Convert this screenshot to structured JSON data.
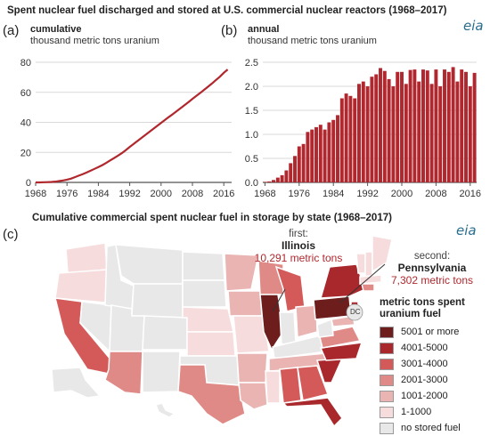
{
  "header": {
    "title": "Spent nuclear fuel discharged and stored at U.S. commercial nuclear reactors (1968–2017)",
    "logo_text": "eia"
  },
  "panels": {
    "a_letter": "(a)",
    "b_letter": "(b)",
    "c_letter": "(c)",
    "a_sub": "cumulative",
    "a_unit": "thousand metric tons uranium",
    "b_sub": "annual",
    "b_unit": "thousand metric tons uranium"
  },
  "map": {
    "title": "Cumulative commercial spent nuclear fuel in storage by state (1968–2017)",
    "logo_text": "eia",
    "first": {
      "label": "first:",
      "state": "Illinois",
      "value": "10,291 metric tons"
    },
    "second": {
      "label": "second:",
      "state": "Pennsylvania",
      "value": "7,302 metric tons"
    },
    "dc_label": "DC",
    "legend": {
      "title_line1": "metric tons spent",
      "title_line2": "uranium fuel",
      "items": [
        {
          "label": "5001 or more",
          "color": "#6e1d1d"
        },
        {
          "label": "4001-5000",
          "color": "#a8282c"
        },
        {
          "label": "3001-4000",
          "color": "#d45a5a"
        },
        {
          "label": "2001-3000",
          "color": "#df8a87"
        },
        {
          "label": "1001-2000",
          "color": "#e9b4b1"
        },
        {
          "label": "1-1000",
          "color": "#f6dcdc"
        },
        {
          "label": "no stored fuel",
          "color": "#e8e8e8"
        }
      ]
    }
  },
  "colors": {
    "series": "#b0282e",
    "grid": "#d9d9d9",
    "axis": "#555555"
  },
  "chart_data": [
    {
      "type": "line",
      "xlabel": "",
      "ylabel": "thousand metric tons uranium",
      "xlim": [
        1968,
        2018
      ],
      "ylim": [
        0,
        80
      ],
      "xticks": [
        "1968",
        "1976",
        "1984",
        "1992",
        "2000",
        "2008",
        "2016"
      ],
      "yticks": [
        "0",
        "20",
        "40",
        "60",
        "80"
      ],
      "series": [
        {
          "x": [
            1968,
            1969,
            1970,
            1971,
            1972,
            1973,
            1974,
            1975,
            1976,
            1977,
            1978,
            1979,
            1980,
            1981,
            1982,
            1983,
            1984,
            1985,
            1986,
            1987,
            1988,
            1989,
            1990,
            1991,
            1992,
            1993,
            1994,
            1995,
            1996,
            1997,
            1998,
            1999,
            2000,
            2001,
            2002,
            2003,
            2004,
            2005,
            2006,
            2007,
            2008,
            2009,
            2010,
            2011,
            2012,
            2013,
            2014,
            2015,
            2016,
            2017
          ],
          "values": [
            0.0,
            0.0,
            0.1,
            0.2,
            0.3,
            0.5,
            0.9,
            1.3,
            1.8,
            2.5,
            3.5,
            4.5,
            5.5,
            6.6,
            7.8,
            9.0,
            10.2,
            11.5,
            13.0,
            14.6,
            16.2,
            17.8,
            19.5,
            21.5,
            23.6,
            25.6,
            27.6,
            29.6,
            31.6,
            33.6,
            35.6,
            37.6,
            39.6,
            41.6,
            43.6,
            45.5,
            47.5,
            49.5,
            51.5,
            53.5,
            55.6,
            57.6,
            59.6,
            61.7,
            63.8,
            65.9,
            68.2,
            70.4,
            73.0,
            75.2
          ]
        }
      ]
    },
    {
      "type": "bar",
      "xlabel": "",
      "ylabel": "thousand metric tons uranium",
      "xlim": [
        1968,
        2018
      ],
      "ylim": [
        0,
        2.5
      ],
      "xticks": [
        "1968",
        "1976",
        "1984",
        "1992",
        "2000",
        "2008",
        "2016"
      ],
      "yticks": [
        "0.0",
        "0.5",
        "1.0",
        "1.5",
        "2.0",
        "2.5"
      ],
      "series": [
        {
          "x": [
            1968,
            1969,
            1970,
            1971,
            1972,
            1973,
            1974,
            1975,
            1976,
            1977,
            1978,
            1979,
            1980,
            1981,
            1982,
            1983,
            1984,
            1985,
            1986,
            1987,
            1988,
            1989,
            1990,
            1991,
            1992,
            1993,
            1994,
            1995,
            1996,
            1997,
            1998,
            1999,
            2000,
            2001,
            2002,
            2003,
            2004,
            2005,
            2006,
            2007,
            2008,
            2009,
            2010,
            2011,
            2012,
            2013,
            2014,
            2015,
            2016,
            2017
          ],
          "values": [
            0.01,
            0.02,
            0.05,
            0.1,
            0.15,
            0.25,
            0.4,
            0.55,
            0.75,
            0.8,
            1.05,
            1.1,
            1.15,
            1.2,
            1.1,
            1.25,
            1.3,
            1.4,
            1.75,
            1.85,
            1.8,
            1.75,
            2.05,
            2.1,
            2.0,
            2.2,
            2.25,
            2.38,
            2.32,
            2.15,
            2.0,
            2.3,
            2.3,
            2.05,
            2.34,
            2.35,
            2.1,
            2.35,
            2.33,
            2.05,
            2.35,
            2.0,
            2.35,
            2.3,
            2.4,
            2.1,
            2.35,
            2.3,
            2.0,
            2.28
          ]
        }
      ]
    }
  ]
}
